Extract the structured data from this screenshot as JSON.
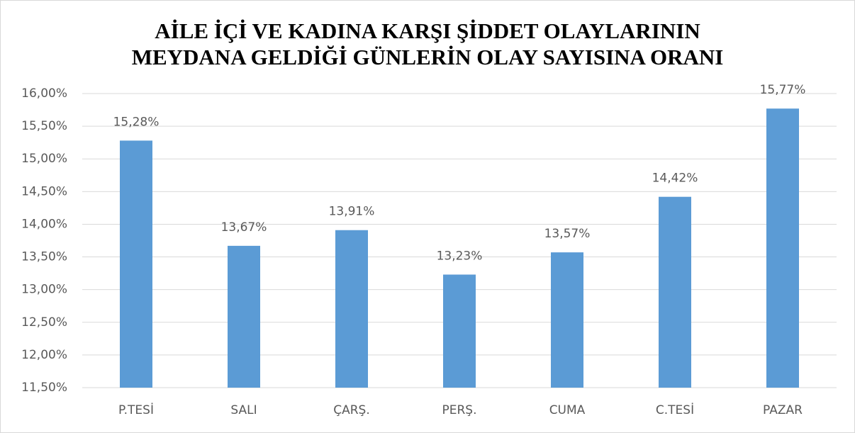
{
  "chart_data": {
    "type": "bar",
    "title": [
      "AİLE İÇİ VE KADINA KARŞI ŞİDDET OLAYLARININ",
      "MEYDANA GELDİĞİ GÜNLERİN OLAY SAYISINA ORANI"
    ],
    "categories": [
      "P.TESİ",
      "SALI",
      "ÇARŞ.",
      "PERŞ.",
      "CUMA",
      "C.TESİ",
      "PAZAR"
    ],
    "values": [
      15.28,
      13.67,
      13.91,
      13.23,
      13.57,
      14.42,
      15.77
    ],
    "value_labels": [
      "15,28%",
      "13,67%",
      "13,91%",
      "13,23%",
      "13,57%",
      "14,42%",
      "15,77%"
    ],
    "color": "#5b9bd5",
    "ylim": [
      11.5,
      16
    ],
    "yticks": [
      {
        "value": 11.5,
        "label": "11,50%"
      },
      {
        "value": 12,
        "label": "12,00%"
      },
      {
        "value": 12.5,
        "label": "12,50%"
      },
      {
        "value": 13,
        "label": "13,00%"
      },
      {
        "value": 13.5,
        "label": "13,50%"
      },
      {
        "value": 14,
        "label": "14,00%"
      },
      {
        "value": 14.5,
        "label": "14,50%"
      },
      {
        "value": 15,
        "label": "15,00%"
      },
      {
        "value": 15.5,
        "label": "15,50%"
      },
      {
        "value": 16,
        "label": "16,00%"
      }
    ],
    "grid": true
  }
}
